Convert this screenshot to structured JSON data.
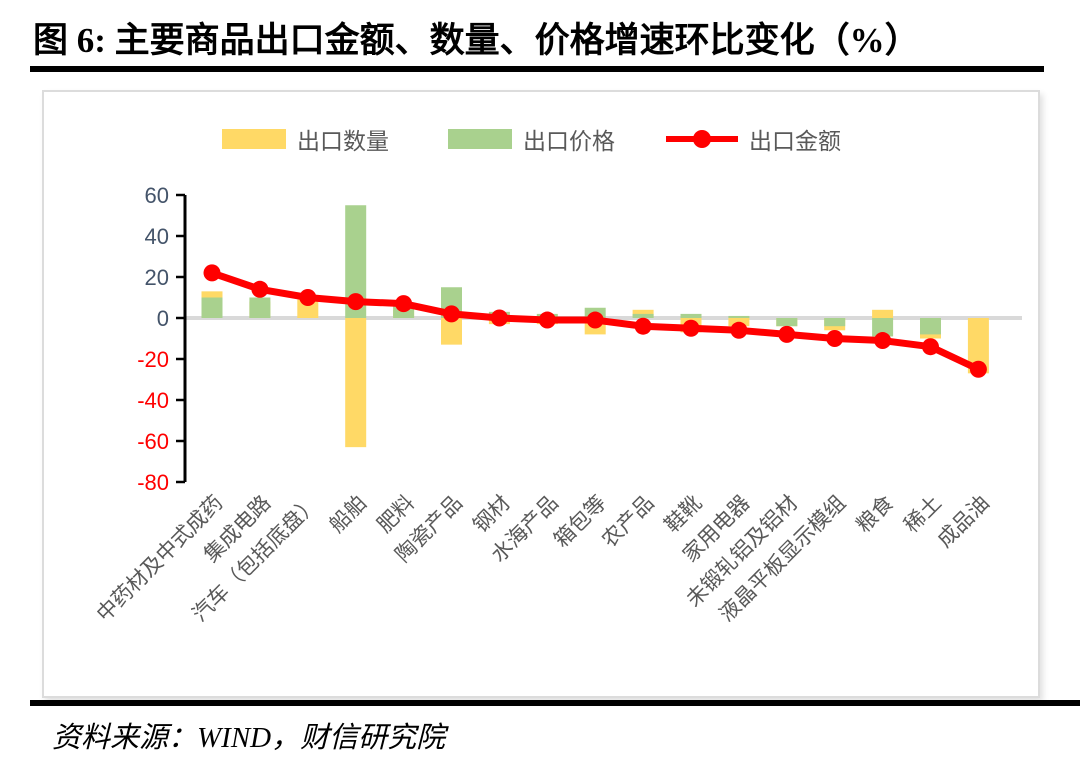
{
  "page": {
    "title": "图 6: 主要商品出口金额、数量、价格增速环比变化（%）",
    "source": "资料来源：WIND，财信研究院"
  },
  "chart_data": {
    "type": "bar+line",
    "title": "主要商品出口金额、数量、价格增速环比变化（%）",
    "categories": [
      "中药材及中式成药",
      "集成电路",
      "汽车（包括底盘）",
      "船舶",
      "肥料",
      "陶瓷产品",
      "钢材",
      "水海产品",
      "箱包等",
      "农产品",
      "鞋靴",
      "家用电器",
      "未锻轧铝及铝材",
      "液晶平板显示模组",
      "粮食",
      "稀土",
      "成品油"
    ],
    "series": [
      {
        "name": "出口数量",
        "type": "bar",
        "color": "#FFD966",
        "values": [
          13,
          8,
          9,
          -63,
          4,
          -13,
          -3,
          -3,
          -8,
          4,
          -7,
          -4,
          -4,
          -6,
          4,
          -10,
          -27
        ]
      },
      {
        "name": "出口价格",
        "type": "bar",
        "color": "#A9D18E",
        "values": [
          10,
          10,
          0,
          55,
          6,
          15,
          3,
          2,
          5,
          2,
          2,
          1,
          -4,
          -4,
          -9,
          -8,
          0
        ]
      },
      {
        "name": "出口金额",
        "type": "line",
        "color": "#FF0000",
        "values": [
          22,
          14,
          10,
          8,
          7,
          2,
          0,
          -1,
          -1,
          -4,
          -5,
          -6,
          -8,
          -10,
          -11,
          -14,
          -25
        ]
      }
    ],
    "ylim": [
      -80,
      60
    ],
    "ytick_step": 20,
    "yticks": [
      60,
      40,
      20,
      0,
      -20,
      -40,
      -60,
      -80
    ],
    "grid": "zero-line-only",
    "legend_position": "top",
    "axis_colors": {
      "positive_tick_label": "#44546A",
      "negative_tick_label": "#FF0000",
      "zero_line": "#D9D9D9",
      "axis_line": "#000000",
      "category_label": "#595959"
    },
    "bars_overlap": true
  }
}
